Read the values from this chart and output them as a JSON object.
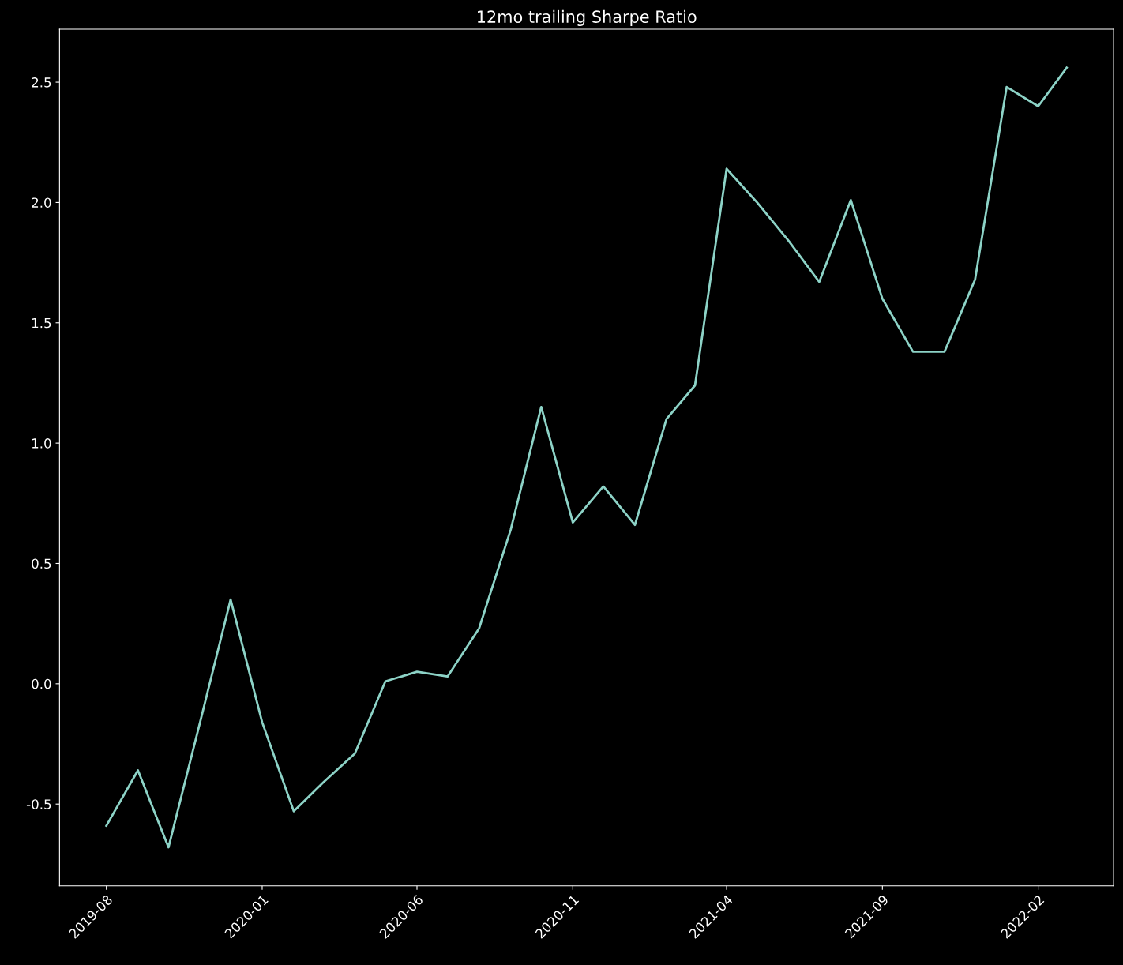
{
  "chart_data": {
    "type": "line",
    "title": "12mo trailing Sharpe Ratio",
    "x": [
      "2019-08",
      "2019-09",
      "2019-10",
      "2019-11",
      "2019-12",
      "2020-01",
      "2020-02",
      "2020-03",
      "2020-04",
      "2020-05",
      "2020-06",
      "2020-07",
      "2020-08",
      "2020-09",
      "2020-10",
      "2020-11",
      "2020-12",
      "2021-01",
      "2021-02",
      "2021-03",
      "2021-04",
      "2021-05",
      "2021-06",
      "2021-07",
      "2021-08",
      "2021-09",
      "2021-10",
      "2021-11",
      "2021-12",
      "2022-01",
      "2022-02",
      "2022-03"
    ],
    "series": [
      {
        "color": "#8dd3c7",
        "values": [
          -0.59,
          -0.36,
          -0.68,
          -0.16,
          0.35,
          -0.16,
          -0.53,
          -0.41,
          -0.29,
          0.01,
          0.05,
          0.03,
          0.23,
          0.64,
          1.15,
          0.67,
          0.82,
          0.66,
          1.1,
          1.24,
          2.14,
          2.0,
          1.84,
          1.67,
          2.01,
          1.6,
          1.38,
          1.38,
          1.68,
          2.48,
          2.4,
          2.56
        ]
      }
    ],
    "xlim": [
      "2019-06-16",
      "2022-04-16"
    ],
    "xticks": [
      "2019-08",
      "2020-01",
      "2020-06",
      "2020-11",
      "2021-04",
      "2021-09",
      "2022-02"
    ],
    "ylim": [
      -0.84,
      2.72
    ],
    "yticks": [
      -0.5,
      {
        "value": 0,
        "label": "0.0"
      },
      0.5,
      {
        "value": 1,
        "label": "1.0"
      },
      1.5,
      {
        "value": 2,
        "label": "2.0"
      },
      2.5
    ],
    "grid": false,
    "legend": false,
    "marker": "none",
    "line_style": "solid"
  }
}
